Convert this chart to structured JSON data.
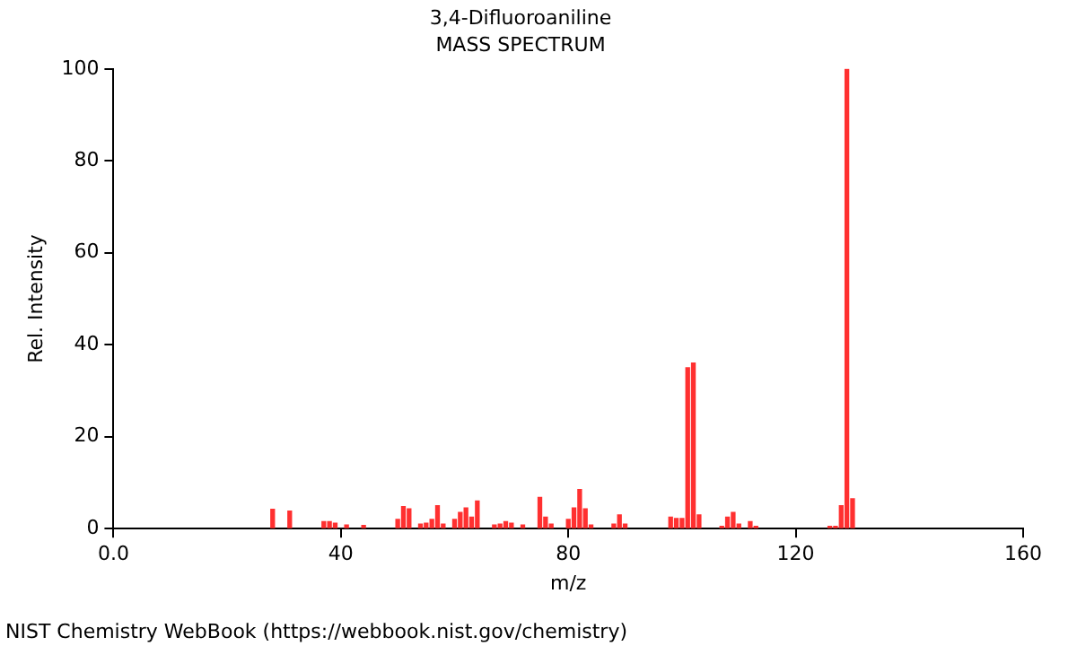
{
  "chart_data": {
    "type": "bar",
    "title": "3,4-Difluoroaniline",
    "subtitle": "MASS SPECTRUM",
    "xlabel": "m/z",
    "ylabel": "Rel. Intensity",
    "x": [
      28,
      31,
      37,
      38,
      39,
      41,
      44,
      50,
      51,
      52,
      54,
      55,
      56,
      57,
      58,
      60,
      61,
      62,
      63,
      64,
      67,
      68,
      69,
      70,
      72,
      75,
      76,
      77,
      80,
      81,
      82,
      83,
      84,
      88,
      89,
      90,
      98,
      99,
      100,
      101,
      102,
      103,
      107,
      108,
      109,
      110,
      112,
      113,
      126,
      127,
      128,
      129,
      130
    ],
    "values": [
      4.2,
      3.8,
      1.5,
      1.5,
      1.2,
      0.8,
      0.7,
      2,
      4.8,
      4.3,
      1,
      1.2,
      2,
      5,
      1,
      2,
      3.5,
      4.5,
      2.5,
      6,
      0.8,
      1,
      1.5,
      1.2,
      0.8,
      6.8,
      2.5,
      1,
      2,
      4.5,
      8.5,
      4.3,
      0.8,
      1,
      3,
      1,
      2.5,
      2.2,
      2.2,
      35,
      36,
      3,
      0.5,
      2.5,
      3.5,
      1,
      1.5,
      0.5,
      0.5,
      0.5,
      5,
      100,
      6.5
    ],
    "color": "#ff3030",
    "xlim": [
      0,
      160
    ],
    "xticks": [
      {
        "value": 0,
        "label": "0.0"
      },
      40,
      80,
      120,
      160
    ],
    "ylim": [
      0,
      100
    ],
    "yticks": [
      0,
      20,
      40,
      60,
      80,
      100
    ],
    "grid": false,
    "legend": false,
    "annotations": [
      "NIST Chemistry WebBook (https://webbook.nist.gov/chemistry)"
    ]
  }
}
